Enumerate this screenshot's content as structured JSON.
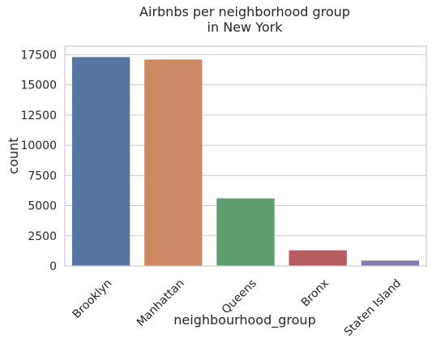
{
  "chart_data": {
    "type": "bar",
    "title": "Airbnbs per neighborhood group\nin New York",
    "xlabel": "neighbourhood_group",
    "ylabel": "count",
    "categories": [
      "Brooklyn",
      "Manhattan",
      "Queens",
      "Bronx",
      "Staten Island"
    ],
    "values": [
      17300,
      17100,
      5600,
      1300,
      450
    ],
    "colors": [
      "#5875a4",
      "#cc8963",
      "#5f9e6e",
      "#b55d60",
      "#857aab"
    ],
    "ylim": [
      0,
      18200
    ],
    "yticks": [
      0,
      2500,
      5000,
      7500,
      10000,
      12500,
      15000,
      17500
    ],
    "grid": true,
    "legend": "none"
  }
}
